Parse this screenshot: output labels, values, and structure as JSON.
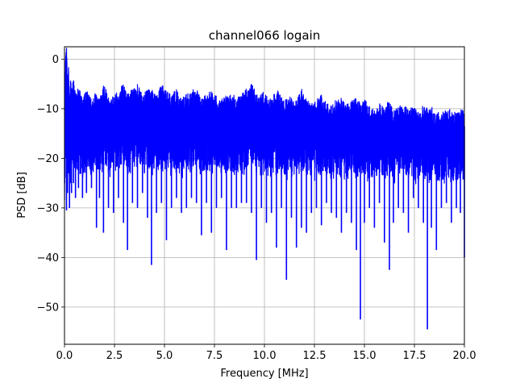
{
  "chart_data": {
    "type": "line",
    "title": "channel066 logain",
    "xlabel": "Frequency [MHz]",
    "ylabel": "PSD [dB]",
    "xlim": [
      0,
      20
    ],
    "ylim": [
      -57.5,
      2.5
    ],
    "grid": true,
    "x_ticks": [
      0,
      2.5,
      5,
      7.5,
      10,
      12.5,
      15,
      17.5,
      20
    ],
    "x_tick_labels": [
      "0.0",
      "2.5",
      "5.0",
      "7.5",
      "10.0",
      "12.5",
      "15.0",
      "17.5",
      "20.0"
    ],
    "y_ticks": [
      0,
      -10,
      -20,
      -30,
      -40,
      -50
    ],
    "y_tick_labels": [
      "0",
      "−10",
      "−20",
      "−30",
      "−40",
      "−50"
    ],
    "series": [
      {
        "color": "#0000ff",
        "x": [
          0.0,
          0.05,
          0.1,
          0.15,
          0.2,
          0.25,
          0.3,
          0.35,
          0.45,
          0.55,
          0.7,
          0.9,
          1.1,
          1.35,
          1.6,
          1.75,
          1.95,
          2.2,
          2.45,
          2.7,
          2.95,
          3.15,
          3.4,
          3.65,
          3.9,
          4.15,
          4.35,
          4.6,
          4.85,
          5.1,
          5.35,
          5.6,
          5.85,
          6.1,
          6.35,
          6.6,
          6.85,
          7.1,
          7.35,
          7.6,
          7.85,
          8.1,
          8.35,
          8.6,
          8.85,
          9.1,
          9.35,
          9.6,
          9.85,
          10.1,
          10.35,
          10.6,
          10.85,
          11.1,
          11.35,
          11.6,
          11.85,
          12.1,
          12.35,
          12.6,
          12.85,
          13.1,
          13.35,
          13.6,
          13.85,
          14.1,
          14.35,
          14.6,
          14.8,
          15.0,
          15.25,
          15.5,
          15.75,
          16.0,
          16.25,
          16.45,
          16.7,
          16.95,
          17.2,
          17.45,
          17.7,
          17.95,
          18.15,
          18.35,
          18.6,
          18.85,
          19.1,
          19.35,
          19.6,
          19.8,
          20.0
        ],
        "y_top": [
          -22.0,
          -3.0,
          0.0,
          -8.0,
          -4.0,
          -12.0,
          -7.0,
          -9.0,
          -7.0,
          -10.0,
          -8.5,
          -11.0,
          -9.0,
          -10.5,
          -9.5,
          -11.0,
          -8.0,
          -10.0,
          -10.5,
          -9.0,
          -7.5,
          -10.0,
          -9.0,
          -8.0,
          -10.0,
          -8.5,
          -9.0,
          -10.5,
          -8.0,
          -9.5,
          -10.0,
          -9.0,
          -11.0,
          -10.0,
          -9.5,
          -8.5,
          -11.0,
          -10.0,
          -9.0,
          -10.5,
          -11.0,
          -10.0,
          -9.5,
          -11.0,
          -10.0,
          -9.0,
          -7.5,
          -10.0,
          -9.5,
          -10.0,
          -11.0,
          -9.0,
          -10.5,
          -11.0,
          -10.0,
          -11.5,
          -9.0,
          -10.5,
          -12.0,
          -11.0,
          -10.0,
          -11.5,
          -12.5,
          -11.0,
          -10.5,
          -12.0,
          -11.5,
          -10.5,
          -12.0,
          -11.0,
          -12.5,
          -13.0,
          -12.0,
          -12.0,
          -11.5,
          -13.0,
          -12.5,
          -12.0,
          -13.0,
          -12.5,
          -13.5,
          -12.0,
          -13.0,
          -12.5,
          -14.0,
          -13.0,
          -13.5,
          -13.0,
          -14.0,
          -13.0,
          -13.5
        ],
        "y_bottom": [
          -22.0,
          -13.0,
          -30.5,
          -27.0,
          -23.0,
          -30.0,
          -25.0,
          -27.0,
          -25.0,
          -28.0,
          -26.0,
          -28.0,
          -27.0,
          -26.0,
          -34.0,
          -28.0,
          -35.0,
          -30.0,
          -31.0,
          -28.0,
          -33.0,
          -38.5,
          -29.0,
          -30.0,
          -27.0,
          -32.0,
          -41.5,
          -31.0,
          -29.0,
          -36.5,
          -30.0,
          -28.0,
          -31.0,
          -30.0,
          -28.0,
          -29.0,
          -35.5,
          -29.0,
          -35.0,
          -30.0,
          -28.0,
          -38.5,
          -30.0,
          -30.0,
          -29.0,
          -29.0,
          -31.0,
          -40.5,
          -30.0,
          -33.0,
          -31.0,
          -38.0,
          -30.0,
          -44.5,
          -32.0,
          -38.0,
          -34.0,
          -35.0,
          -31.0,
          -30.0,
          -33.5,
          -29.0,
          -31.0,
          -32.0,
          -35.0,
          -31.0,
          -33.0,
          -38.5,
          -52.5,
          -33.0,
          -30.0,
          -34.0,
          -29.0,
          -37.0,
          -42.5,
          -33.0,
          -30.0,
          -31.0,
          -35.0,
          -28.0,
          -30.0,
          -33.0,
          -54.5,
          -34.0,
          -38.5,
          -30.0,
          -29.0,
          -33.0,
          -30.0,
          -31.0,
          -40.0
        ]
      }
    ]
  }
}
